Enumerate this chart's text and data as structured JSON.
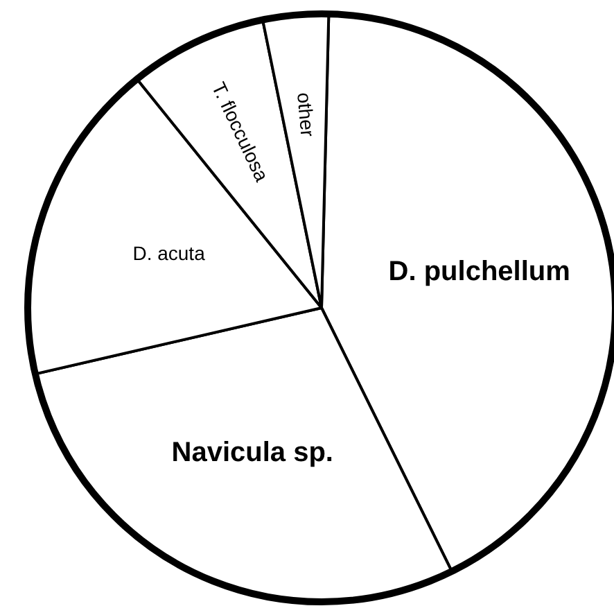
{
  "chart_data": {
    "type": "pie",
    "categories": [
      "D. pulchellum",
      "Navicula sp.",
      "D. acuta",
      "T. flocculosa",
      "other"
    ],
    "values": [
      42.3,
      28.7,
      17.8,
      7.6,
      3.6
    ],
    "colors": [
      "#ffffff",
      "#ffffff",
      "#ffffff",
      "#ffffff",
      "#ffffff"
    ]
  }
}
